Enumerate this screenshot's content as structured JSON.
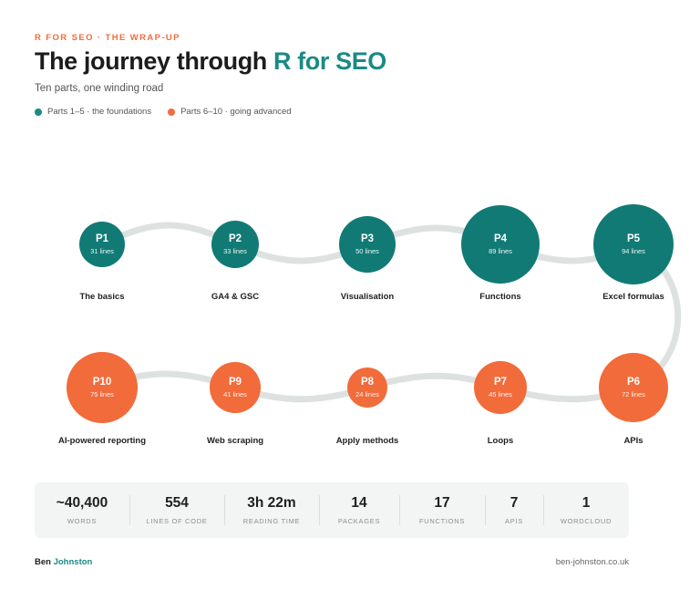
{
  "header": {
    "eyebrow": "R FOR SEO · THE WRAP-UP",
    "title_main": "The journey through ",
    "title_accent": "R for SEO",
    "subtitle": "Ten parts, one winding road"
  },
  "legend": [
    {
      "label": "Parts 1–5 · the foundations",
      "color": "#1a8a85"
    },
    {
      "label": "Parts 6–10 · going advanced",
      "color": "#f26b3a"
    }
  ],
  "parts": [
    {
      "id": "P1",
      "lines": "31 lines",
      "name": "The basics",
      "group": "foundations"
    },
    {
      "id": "P2",
      "lines": "33 lines",
      "name": "GA4 & GSC",
      "group": "foundations"
    },
    {
      "id": "P3",
      "lines": "50 lines",
      "name": "Visualisation",
      "group": "foundations"
    },
    {
      "id": "P4",
      "lines": "89 lines",
      "name": "Functions",
      "group": "foundations"
    },
    {
      "id": "P5",
      "lines": "94 lines",
      "name": "Excel formulas",
      "group": "foundations"
    },
    {
      "id": "P6",
      "lines": "72 lines",
      "name": "APIs",
      "group": "advanced"
    },
    {
      "id": "P7",
      "lines": "45 lines",
      "name": "Loops",
      "group": "advanced"
    },
    {
      "id": "P8",
      "lines": "24 lines",
      "name": "Apply methods",
      "group": "advanced"
    },
    {
      "id": "P9",
      "lines": "41 lines",
      "name": "Web scraping",
      "group": "advanced"
    },
    {
      "id": "P10",
      "lines": "75 lines",
      "name": "AI-powered reporting",
      "group": "advanced"
    }
  ],
  "stats": [
    {
      "value": "~40,400",
      "label": "WORDS"
    },
    {
      "value": "554",
      "label": "LINES OF CODE"
    },
    {
      "value": "3h 22m",
      "label": "READING TIME"
    },
    {
      "value": "14",
      "label": "PACKAGES"
    },
    {
      "value": "17",
      "label": "FUNCTIONS"
    },
    {
      "value": "7",
      "label": "APIS"
    },
    {
      "value": "1",
      "label": "WORDCLOUD"
    }
  ],
  "footer": {
    "author_first": "Ben ",
    "author_last": "Johnston",
    "site": "ben-johnston.co.uk"
  },
  "colors": {
    "teal": "#117a75",
    "orange": "#f26b3a",
    "road": "#dde2e1"
  }
}
